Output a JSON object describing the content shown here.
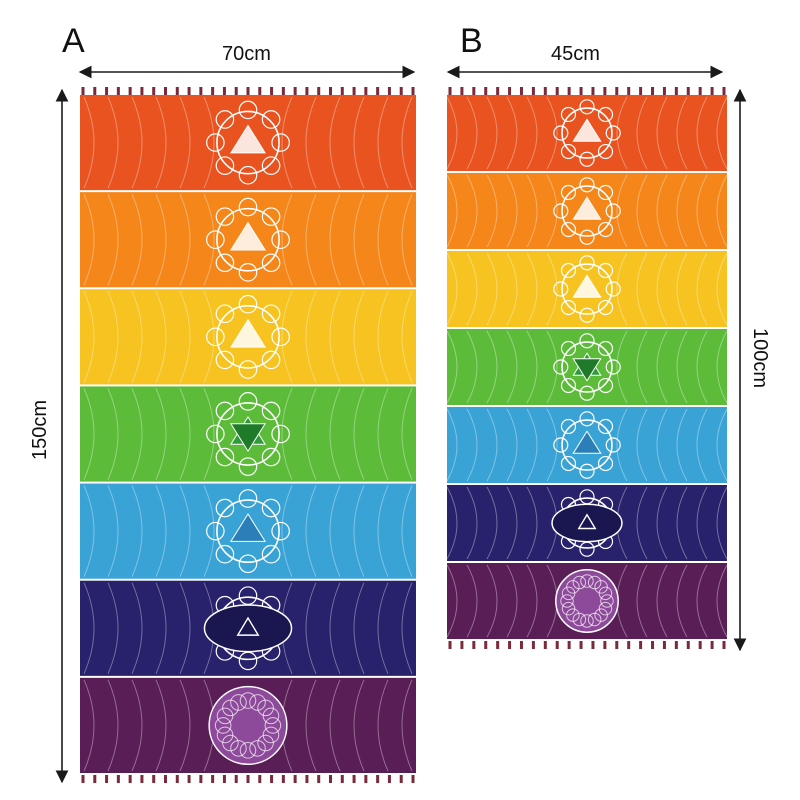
{
  "panels": {
    "a": {
      "label": "A",
      "width_label": "70cm",
      "height_label": "150cm",
      "stripe_colors": [
        "#e8531f",
        "#f5861a",
        "#f6c320",
        "#5cbc3a",
        "#3aa3d6",
        "#27226b",
        "#5a1e56"
      ]
    },
    "b": {
      "label": "B",
      "width_label": "45cm",
      "height_label": "100cm",
      "stripe_colors": [
        "#e8531f",
        "#f5861a",
        "#f6c320",
        "#5cbc3a",
        "#3aa3d6",
        "#27226b",
        "#5a1e56"
      ]
    }
  },
  "colors": {
    "arrow": "#1a1a1a",
    "tassel": "#7a2a3a",
    "symbol": "#ffffff"
  }
}
